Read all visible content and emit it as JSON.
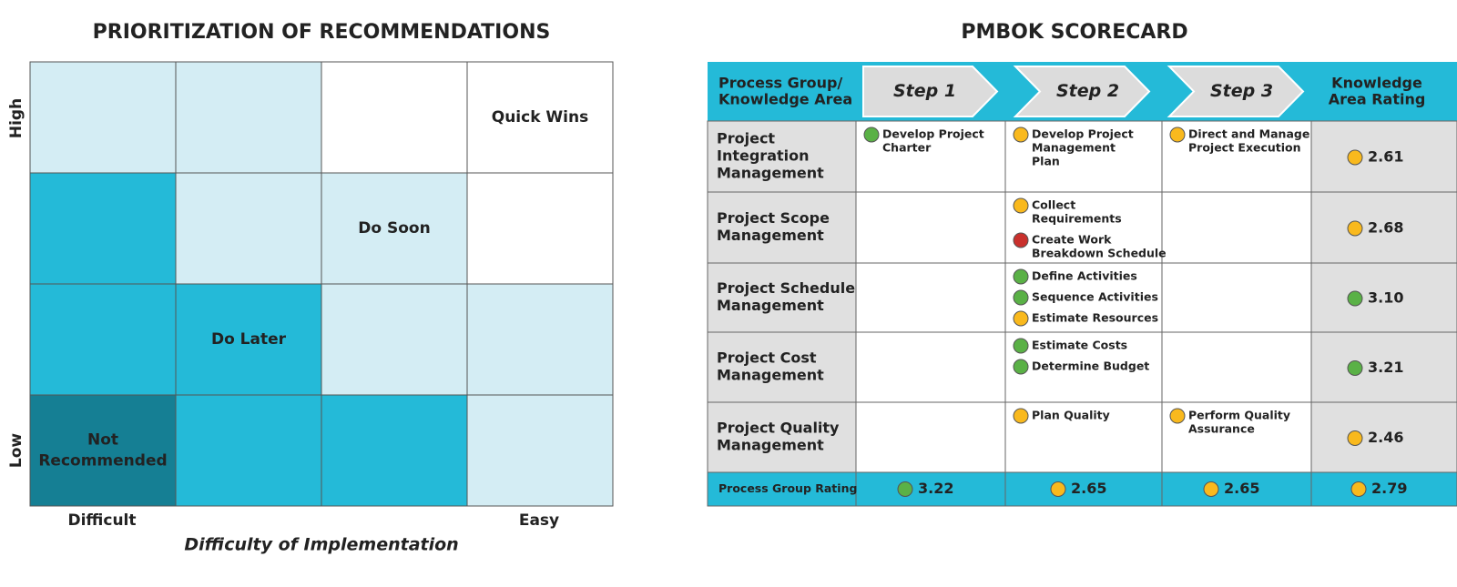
{
  "status_colors": {
    "green": "#5ab146",
    "yellow": "#f9b91d",
    "red": "#c9302c"
  },
  "matrix": {
    "title": "PRIORITIZATION OF RECOMMENDATIONS",
    "y_high": "High",
    "y_low": "Low",
    "x_difficult": "Difficult",
    "x_easy": "Easy",
    "x_label": "Difficulty of Implementation",
    "rows": [
      [
        {
          "fill": "#d4edf4"
        },
        {
          "fill": "#d4edf4"
        },
        {
          "fill": "#ffffff"
        },
        {
          "fill": "#ffffff",
          "label": [
            "Quick Wins"
          ],
          "text_color": "#333333"
        }
      ],
      [
        {
          "fill": "#24bad8"
        },
        {
          "fill": "#d4edf4"
        },
        {
          "fill": "#d4edf4",
          "label": [
            "Do Soon"
          ],
          "text_color": "#333333"
        },
        {
          "fill": "#ffffff"
        }
      ],
      [
        {
          "fill": "#24bad8"
        },
        {
          "fill": "#24bad8",
          "label": [
            "Do Later"
          ],
          "text_color": "#333333"
        },
        {
          "fill": "#d4edf4"
        },
        {
          "fill": "#d4edf4"
        }
      ],
      [
        {
          "fill": "#157f94",
          "label": [
            "Not",
            "Recommended"
          ],
          "text_color": "#ffffff"
        },
        {
          "fill": "#24bad8"
        },
        {
          "fill": "#24bad8"
        },
        {
          "fill": "#d4edf4"
        }
      ]
    ]
  },
  "scorecard": {
    "title": "PMBOK SCORECARD",
    "header_first": [
      "Process Group/",
      "Knowledge Area"
    ],
    "steps": [
      "Step 1",
      "Step 2",
      "Step 3"
    ],
    "header_last": [
      "Knowledge",
      "Area Rating"
    ],
    "rows": [
      {
        "name": [
          "Project",
          "Integration",
          "Management"
        ],
        "cells": [
          [
            {
              "status": "green",
              "text": [
                "Develop Project",
                "Charter"
              ]
            }
          ],
          [
            {
              "status": "yellow",
              "text": [
                "Develop Project",
                "Management",
                "Plan"
              ]
            }
          ],
          [
            {
              "status": "yellow",
              "text": [
                "Direct and Manage",
                "Project Execution"
              ]
            }
          ]
        ],
        "rating": {
          "status": "yellow",
          "value": "2.61"
        }
      },
      {
        "name": [
          "Project Scope",
          "Management"
        ],
        "cells": [
          [],
          [
            {
              "status": "yellow",
              "text": [
                "Collect",
                "Requirements"
              ]
            },
            {
              "status": "red",
              "text": [
                "Create Work",
                "Breakdown Schedule"
              ]
            }
          ],
          []
        ],
        "rating": {
          "status": "yellow",
          "value": "2.68"
        }
      },
      {
        "name": [
          "Project Schedule",
          "Management"
        ],
        "cells": [
          [],
          [
            {
              "status": "green",
              "text": [
                "Define Activities"
              ]
            },
            {
              "status": "green",
              "text": [
                "Sequence Activities"
              ]
            },
            {
              "status": "yellow",
              "text": [
                "Estimate Resources"
              ]
            }
          ],
          []
        ],
        "rating": {
          "status": "green",
          "value": "3.10"
        }
      },
      {
        "name": [
          "Project Cost",
          "Management"
        ],
        "cells": [
          [],
          [
            {
              "status": "green",
              "text": [
                "Estimate Costs"
              ]
            },
            {
              "status": "green",
              "text": [
                "Determine Budget"
              ]
            }
          ],
          []
        ],
        "rating": {
          "status": "green",
          "value": "3.21"
        }
      },
      {
        "name": [
          "Project Quality",
          "Management"
        ],
        "cells": [
          [],
          [
            {
              "status": "yellow",
              "text": [
                "Plan Quality"
              ]
            }
          ],
          [
            {
              "status": "yellow",
              "text": [
                "Perform Quality",
                "Assurance"
              ]
            }
          ]
        ],
        "rating": {
          "status": "yellow",
          "value": "2.46"
        }
      }
    ],
    "footer": {
      "label": "Process Group Rating",
      "ratings": [
        {
          "status": "green",
          "value": "3.22"
        },
        {
          "status": "yellow",
          "value": "2.65"
        },
        {
          "status": "yellow",
          "value": "2.65"
        },
        {
          "status": "yellow",
          "value": "2.79"
        }
      ]
    }
  }
}
